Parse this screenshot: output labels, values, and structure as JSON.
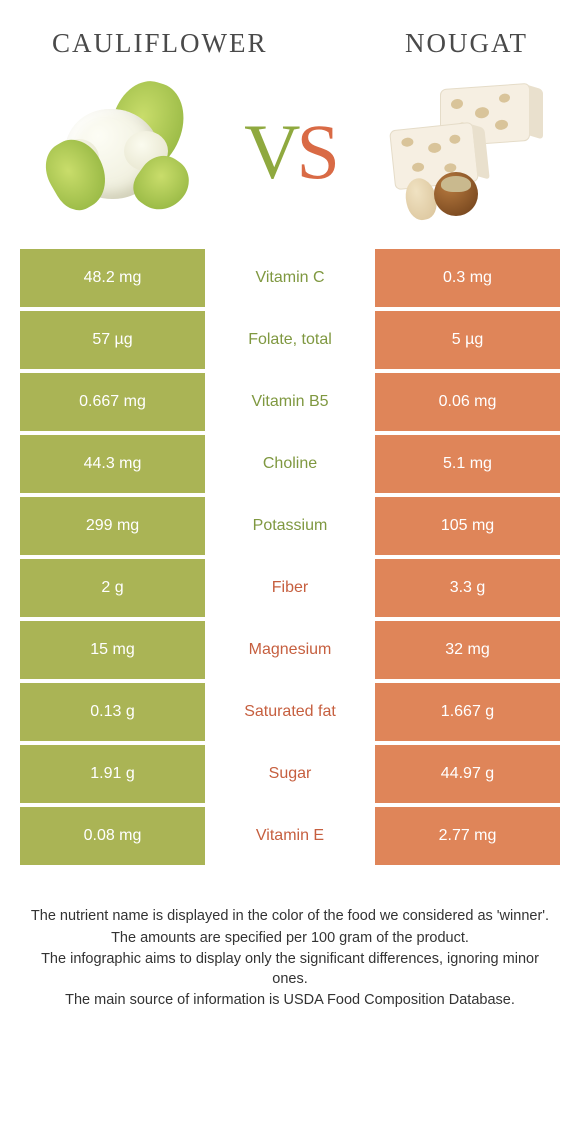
{
  "colors": {
    "green": "#aab455",
    "orange": "#df8559",
    "green_text": "#7f9840",
    "orange_text": "#c65f3f"
  },
  "header": {
    "left": "CAULIFLOWER",
    "right": "NOUGAT"
  },
  "vs": {
    "v": "V",
    "s": "S"
  },
  "rows": [
    {
      "left": "48.2 mg",
      "label": "Vitamin C",
      "right": "0.3 mg",
      "winner": "left"
    },
    {
      "left": "57 µg",
      "label": "Folate, total",
      "right": "5 µg",
      "winner": "left"
    },
    {
      "left": "0.667 mg",
      "label": "Vitamin B5",
      "right": "0.06 mg",
      "winner": "left"
    },
    {
      "left": "44.3 mg",
      "label": "Choline",
      "right": "5.1 mg",
      "winner": "left"
    },
    {
      "left": "299 mg",
      "label": "Potassium",
      "right": "105 mg",
      "winner": "left"
    },
    {
      "left": "2 g",
      "label": "Fiber",
      "right": "3.3 g",
      "winner": "right"
    },
    {
      "left": "15 mg",
      "label": "Magnesium",
      "right": "32 mg",
      "winner": "right"
    },
    {
      "left": "0.13 g",
      "label": "Saturated fat",
      "right": "1.667 g",
      "winner": "right"
    },
    {
      "left": "1.91 g",
      "label": "Sugar",
      "right": "44.97 g",
      "winner": "right"
    },
    {
      "left": "0.08 mg",
      "label": "Vitamin E",
      "right": "2.77 mg",
      "winner": "right"
    }
  ],
  "notes": [
    "The nutrient name is displayed in the color of the food we considered as 'winner'.",
    "The amounts are specified per 100 gram of the product.",
    "The infographic aims to display only the significant differences, ignoring minor ones.",
    "The main source of information is USDA Food Composition Database."
  ]
}
